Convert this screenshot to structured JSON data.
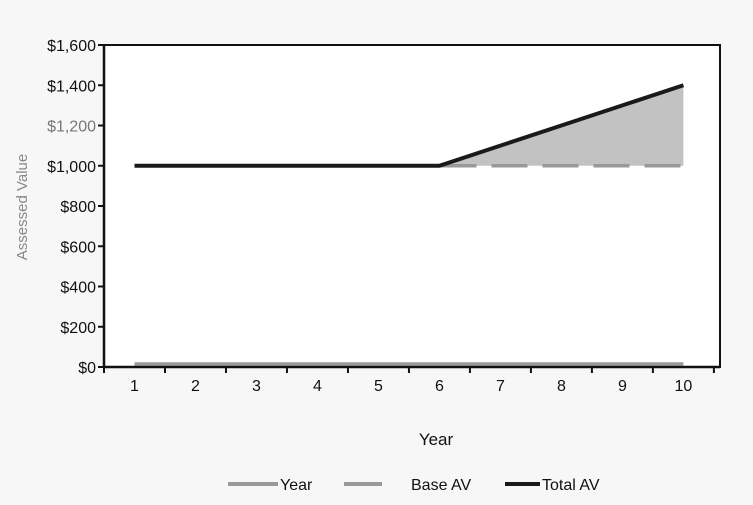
{
  "chart_data": {
    "type": "line",
    "title": "",
    "xlabel": "Year",
    "ylabel": "Assessed Value",
    "x": [
      1,
      2,
      3,
      4,
      5,
      6,
      7,
      8,
      9,
      10
    ],
    "xtick_labels": [
      "1",
      "2",
      "3",
      "4",
      "5",
      "6",
      "7",
      "8",
      "9",
      "10"
    ],
    "ylim": [
      0,
      1600
    ],
    "yticks": [
      0,
      200,
      400,
      600,
      800,
      1000,
      1200,
      1400,
      1600
    ],
    "ytick_labels": [
      "$0",
      "$200",
      "$400",
      "$600",
      "$800",
      "$1,000",
      "$1,200",
      "$1,400",
      "$1,600"
    ],
    "grid": false,
    "legend_position": "bottom",
    "series": [
      {
        "name": "Year",
        "style": "solid",
        "color": "#999999",
        "values": [
          0,
          0,
          0,
          0,
          0,
          0,
          0,
          0,
          0,
          0
        ]
      },
      {
        "name": "Base AV",
        "style": "dashed",
        "color": "#999999",
        "values": [
          1000,
          1000,
          1000,
          1000,
          1000,
          1000,
          1000,
          1000,
          1000,
          1000
        ]
      },
      {
        "name": "Total AV",
        "style": "solid",
        "color": "#1a1a1a",
        "values": [
          1000,
          1000,
          1000,
          1000,
          1000,
          1000,
          1100,
          1200,
          1300,
          1400
        ]
      }
    ],
    "shaded_area": {
      "between": [
        "Base AV",
        "Total AV"
      ],
      "color": "#c2c2c2"
    }
  }
}
